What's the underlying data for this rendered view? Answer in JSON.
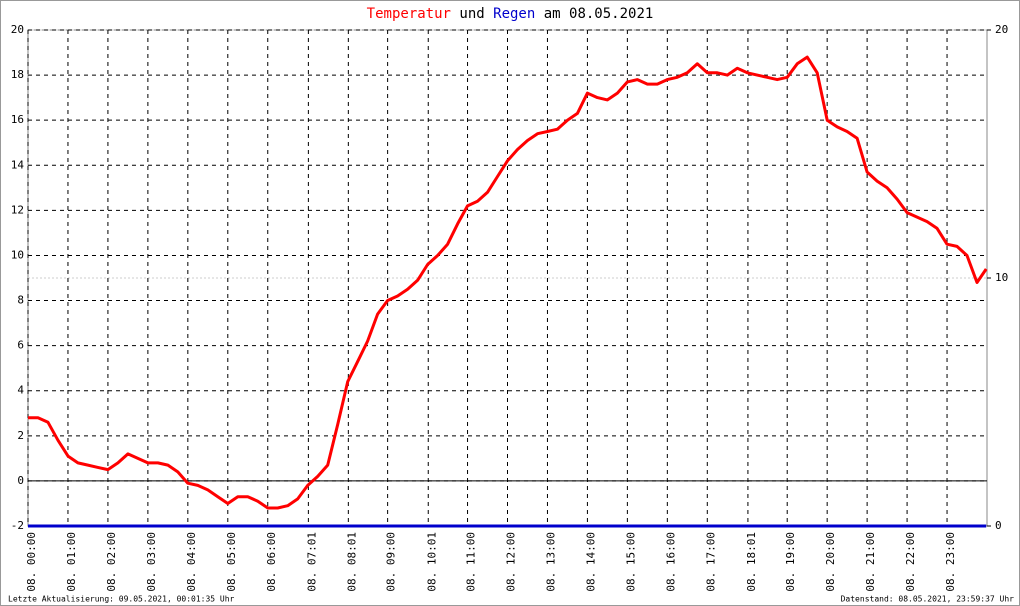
{
  "chart_data": {
    "type": "line",
    "title_joiner": "und",
    "title_date": "am 08.05.2021",
    "footer_left": "Letzte Aktualisierung: 09.05.2021, 00:01:35 Uhr",
    "footer_right": "Datenstand: 08.05.2021, 23:59:37 Uhr",
    "x": [
      0,
      0.25,
      0.5,
      0.75,
      1,
      1.25,
      1.5,
      1.75,
      2,
      2.25,
      2.5,
      2.75,
      3,
      3.25,
      3.5,
      3.75,
      4,
      4.25,
      4.5,
      4.75,
      5,
      5.25,
      5.5,
      5.75,
      6,
      6.25,
      6.5,
      6.75,
      7,
      7.25,
      7.5,
      7.75,
      8,
      8.25,
      8.5,
      8.75,
      9,
      9.25,
      9.5,
      9.75,
      10,
      10.25,
      10.5,
      10.75,
      11,
      11.25,
      11.5,
      11.75,
      12,
      12.25,
      12.5,
      12.75,
      13,
      13.25,
      13.5,
      13.75,
      14,
      14.25,
      14.5,
      14.75,
      15,
      15.25,
      15.5,
      15.75,
      16,
      16.25,
      16.5,
      16.75,
      17,
      17.25,
      17.5,
      17.75,
      18,
      18.25,
      18.5,
      18.75,
      19,
      19.25,
      19.5,
      19.75,
      20,
      20.25,
      20.5,
      20.75,
      21,
      21.25,
      21.5,
      21.75,
      22,
      22.25,
      22.5,
      22.75,
      23,
      23.25,
      23.5,
      23.75,
      23.98
    ],
    "series": [
      {
        "name": "Temperatur",
        "color": "#ff0000",
        "values": [
          2.8,
          2.8,
          2.6,
          1.8,
          1.1,
          0.8,
          0.7,
          0.6,
          0.5,
          0.8,
          1.2,
          1.0,
          0.8,
          0.8,
          0.7,
          0.4,
          -0.1,
          -0.2,
          -0.4,
          -0.7,
          -1.0,
          -0.7,
          -0.7,
          -0.9,
          -1.2,
          -1.2,
          -1.1,
          -0.8,
          -0.2,
          0.2,
          0.7,
          2.5,
          4.4,
          5.3,
          6.2,
          7.4,
          8.0,
          8.2,
          8.5,
          8.9,
          9.6,
          10.0,
          10.5,
          11.4,
          12.2,
          12.4,
          12.8,
          13.5,
          14.2,
          14.7,
          15.1,
          15.4,
          15.5,
          15.6,
          16.0,
          16.3,
          17.2,
          17.0,
          16.9,
          17.2,
          17.7,
          17.8,
          17.6,
          17.6,
          17.8,
          17.9,
          18.1,
          18.5,
          18.1,
          18.1,
          18.0,
          18.3,
          18.1,
          18.0,
          17.9,
          17.8,
          17.9,
          18.5,
          18.8,
          18.1,
          16.0,
          15.7,
          15.5,
          15.2,
          13.7,
          13.3,
          13.0,
          12.5,
          11.9,
          11.7,
          11.5,
          11.2,
          10.5,
          10.4,
          10.0,
          8.8,
          9.4
        ]
      },
      {
        "name": "Regen",
        "color": "#0000cc",
        "axis": "y2",
        "x": [
          0,
          23.98
        ],
        "values": [
          0,
          0
        ]
      }
    ],
    "xlim": [
      0,
      24
    ],
    "xticks": [
      {
        "value": 0,
        "label": "08. 00:00"
      },
      {
        "value": 1,
        "label": "08. 01:00"
      },
      {
        "value": 2,
        "label": "08. 02:00"
      },
      {
        "value": 3,
        "label": "08. 03:00"
      },
      {
        "value": 4,
        "label": "08. 04:00"
      },
      {
        "value": 5,
        "label": "08. 05:00"
      },
      {
        "value": 6,
        "label": "08. 06:00"
      },
      {
        "value": 7.0167,
        "label": "08. 07:01"
      },
      {
        "value": 8.0167,
        "label": "08. 08:01"
      },
      {
        "value": 9,
        "label": "08. 09:00"
      },
      {
        "value": 10.0167,
        "label": "08. 10:01"
      },
      {
        "value": 11,
        "label": "08. 11:00"
      },
      {
        "value": 12,
        "label": "08. 12:00"
      },
      {
        "value": 13,
        "label": "08. 13:00"
      },
      {
        "value": 14,
        "label": "08. 14:00"
      },
      {
        "value": 15,
        "label": "08. 15:00"
      },
      {
        "value": 16,
        "label": "08. 16:00"
      },
      {
        "value": 17,
        "label": "08. 17:00"
      },
      {
        "value": 18.0167,
        "label": "08. 18:01"
      },
      {
        "value": 19,
        "label": "08. 19:00"
      },
      {
        "value": 20,
        "label": "08. 20:00"
      },
      {
        "value": 21,
        "label": "08. 21:00"
      },
      {
        "value": 22,
        "label": "08. 22:00"
      },
      {
        "value": 23,
        "label": "08. 23:00"
      }
    ],
    "ylim": [
      -2,
      20
    ],
    "yticks": [
      -2,
      0,
      2,
      4,
      6,
      8,
      10,
      12,
      14,
      16,
      18,
      20
    ],
    "y2lim": [
      0,
      20
    ],
    "y2ticks": [
      0,
      10,
      20
    ],
    "grid": true
  }
}
